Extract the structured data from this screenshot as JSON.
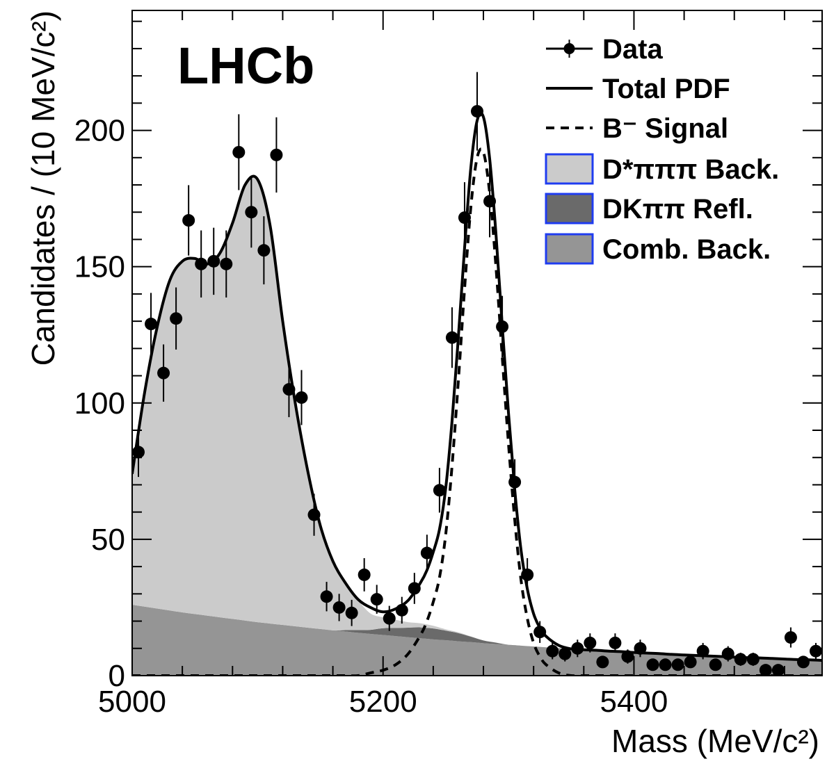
{
  "chart_data": {
    "type": "histogram-fit",
    "annotation": "LHCb",
    "xlabel": "Mass (MeV/c²)",
    "ylabel": "Candidates / (10 MeV/c²)",
    "xlim": [
      5000,
      5550
    ],
    "ylim": [
      0,
      244
    ],
    "xticks": [
      5000,
      5200,
      5400
    ],
    "yticks": [
      0,
      50,
      100,
      150,
      200
    ],
    "xminorticks": [
      5040,
      5080,
      5120,
      5160,
      5240,
      5280,
      5320,
      5360,
      5440,
      5480,
      5520
    ],
    "yminorticks": [
      10,
      20,
      30,
      40,
      60,
      70,
      80,
      90,
      110,
      120,
      130,
      140,
      160,
      170,
      180,
      190,
      210,
      220,
      230,
      240
    ],
    "series": [
      {
        "name": "Data",
        "type": "points",
        "color": "#000000",
        "x": [
          5005,
          5015,
          5025,
          5035,
          5045,
          5055,
          5065,
          5075,
          5085,
          5095,
          5105,
          5115,
          5125,
          5135,
          5145,
          5155,
          5165,
          5175,
          5185,
          5195,
          5205,
          5215,
          5225,
          5235,
          5245,
          5255,
          5265,
          5275,
          5285,
          5295,
          5305,
          5315,
          5325,
          5335,
          5345,
          5355,
          5365,
          5375,
          5385,
          5395,
          5405,
          5415,
          5425,
          5435,
          5445,
          5455,
          5465,
          5475,
          5485,
          5495,
          5505,
          5515,
          5525,
          5535,
          5545
        ],
        "values": [
          82,
          129,
          111,
          131,
          167,
          151,
          152,
          151,
          192,
          170,
          156,
          191,
          105,
          102,
          59,
          29,
          25,
          23,
          37,
          28,
          21,
          24,
          32,
          45,
          68,
          124,
          168,
          207,
          174,
          128,
          71,
          37,
          16,
          9,
          8,
          10,
          12,
          5,
          12,
          7,
          10,
          4,
          4,
          4,
          5,
          9,
          4,
          8,
          6,
          6,
          2,
          2,
          14,
          5,
          9
        ],
        "errors": [
          9.1,
          11.4,
          10.5,
          11.4,
          12.9,
          12.3,
          12.3,
          12.3,
          13.9,
          13.0,
          12.5,
          13.8,
          10.2,
          10.1,
          7.7,
          5.4,
          5.0,
          4.8,
          6.1,
          5.3,
          4.6,
          4.9,
          5.7,
          6.7,
          8.2,
          11.1,
          13.0,
          14.4,
          13.2,
          11.3,
          8.4,
          6.1,
          4.0,
          3.0,
          2.8,
          3.2,
          3.5,
          2.2,
          3.5,
          2.6,
          3.2,
          2.0,
          2.0,
          2.0,
          2.2,
          3.0,
          2.0,
          2.8,
          2.4,
          2.4,
          1.4,
          1.4,
          3.7,
          2.2,
          3.0
        ]
      },
      {
        "name": "Total PDF",
        "type": "line",
        "color": "#000000",
        "x": [
          5000,
          5010,
          5020,
          5030,
          5040,
          5050,
          5060,
          5070,
          5080,
          5090,
          5100,
          5110,
          5120,
          5130,
          5140,
          5150,
          5160,
          5170,
          5180,
          5190,
          5200,
          5210,
          5220,
          5230,
          5235,
          5240,
          5245,
          5250,
          5255,
          5260,
          5265,
          5270,
          5275,
          5280,
          5285,
          5290,
          5295,
          5300,
          5305,
          5310,
          5315,
          5320,
          5325,
          5330,
          5340,
          5350,
          5360,
          5370,
          5380,
          5390,
          5400,
          5410,
          5420,
          5430,
          5440,
          5450,
          5460,
          5470,
          5480,
          5490,
          5500,
          5510,
          5520,
          5530,
          5540,
          5550
        ],
        "values": [
          74,
          104,
          128,
          145,
          152,
          153,
          151,
          155,
          166,
          180,
          182,
          165,
          130,
          100,
          75,
          55,
          42,
          34,
          28,
          25,
          23.4,
          24.5,
          27.6,
          34.2,
          38.7,
          45.3,
          53.7,
          69,
          93.4,
          124,
          157,
          186.4,
          203.6,
          204.9,
          189.5,
          162,
          128.4,
          96.3,
          68.1,
          46,
          31.8,
          22.7,
          17.5,
          14.4,
          11.1,
          9.8,
          9.5,
          9.3,
          9.0,
          8.8,
          8.5,
          8.3,
          8.1,
          7.8,
          7.6,
          7.4,
          7.2,
          7.0,
          6.8,
          6.6,
          6.5,
          6.3,
          6.1,
          5.9,
          5.8,
          5.6
        ]
      },
      {
        "name": "B⁻ Signal",
        "type": "dashed",
        "color": "#000000",
        "x": [
          5000,
          5010,
          5020,
          5030,
          5040,
          5050,
          5060,
          5070,
          5080,
          5090,
          5100,
          5110,
          5120,
          5130,
          5140,
          5150,
          5160,
          5170,
          5180,
          5190,
          5200,
          5210,
          5220,
          5230,
          5235,
          5240,
          5245,
          5250,
          5255,
          5260,
          5265,
          5270,
          5275,
          5280,
          5285,
          5290,
          5295,
          5300,
          5305,
          5310,
          5315,
          5320,
          5325,
          5330,
          5340,
          5350,
          5360,
          5370,
          5380,
          5390,
          5400,
          5410,
          5420,
          5430,
          5440,
          5450,
          5460,
          5470,
          5480,
          5490,
          5500,
          5510,
          5520,
          5530,
          5540,
          5550
        ],
        "values": [
          0,
          0,
          0,
          0,
          0,
          0,
          0,
          0,
          0,
          0,
          0,
          0,
          0,
          0,
          0,
          0,
          0,
          0,
          0,
          1,
          2,
          4,
          8,
          15,
          20,
          27,
          36,
          52,
          77,
          108,
          142,
          172,
          190,
          192,
          177,
          150,
          117,
          85,
          57,
          35,
          21,
          12,
          7,
          4,
          1,
          0,
          0,
          0,
          0,
          0,
          0,
          0,
          0,
          0,
          0,
          0,
          0,
          0,
          0,
          0,
          0,
          0,
          0,
          0,
          0,
          0
        ]
      },
      {
        "name": "D*πππ Back.",
        "type": "area",
        "color": "#cbcbcb",
        "edgecolor": "#1f3cf0",
        "x": [
          5000,
          5010,
          5020,
          5030,
          5040,
          5050,
          5060,
          5070,
          5080,
          5090,
          5100,
          5110,
          5120,
          5130,
          5140,
          5150,
          5160,
          5170,
          5180,
          5190,
          5200,
          5210,
          5220,
          5230,
          5240,
          5250,
          5260,
          5270,
          5280,
          5290,
          5300,
          5310,
          5320,
          5330,
          5340,
          5350,
          5360,
          5370,
          5380,
          5390,
          5400,
          5410,
          5420,
          5430,
          5440,
          5450,
          5460,
          5470,
          5480,
          5490,
          5500,
          5510,
          5520,
          5530,
          5540,
          5550
        ],
        "values": [
          48,
          79,
          103,
          121,
          129,
          130,
          129,
          134,
          145,
          160,
          162,
          146,
          111,
          82,
          57,
          38,
          25,
          17,
          11,
          6,
          4,
          3,
          2,
          1.5,
          1,
          0.5,
          0.3,
          0.1,
          0,
          0,
          0,
          0,
          0,
          0,
          0,
          0,
          0,
          0,
          0,
          0,
          0,
          0,
          0,
          0,
          0,
          0,
          0,
          0,
          0,
          0,
          0,
          0,
          0,
          0,
          0,
          0
        ]
      },
      {
        "name": "DKππ Refl.",
        "type": "area",
        "color": "#6a6a6a",
        "edgecolor": "#1f3cf0",
        "x": [
          5000,
          5010,
          5020,
          5030,
          5040,
          5050,
          5060,
          5070,
          5080,
          5090,
          5100,
          5110,
          5120,
          5130,
          5140,
          5150,
          5160,
          5170,
          5180,
          5190,
          5200,
          5210,
          5220,
          5230,
          5240,
          5250,
          5260,
          5270,
          5280,
          5290,
          5300,
          5310,
          5320,
          5330,
          5340,
          5350,
          5360,
          5370,
          5380,
          5390,
          5400,
          5410,
          5420,
          5430,
          5440,
          5450,
          5460,
          5470,
          5480,
          5490,
          5500,
          5510,
          5520,
          5530,
          5540,
          5550
        ],
        "values": [
          0,
          0,
          0,
          0,
          0,
          0,
          0,
          0,
          0,
          0,
          0,
          0,
          0,
          0,
          0,
          0,
          0,
          0.5,
          1,
          1.5,
          2.5,
          3,
          3.5,
          4,
          4,
          3.5,
          3,
          2,
          1,
          0.5,
          0,
          0,
          0,
          0,
          0,
          0,
          0,
          0,
          0,
          0,
          0,
          0,
          0,
          0,
          0,
          0,
          0,
          0,
          0,
          0,
          0,
          0,
          0,
          0,
          0,
          0
        ]
      },
      {
        "name": "Comb. Back.",
        "type": "area",
        "color": "#959595",
        "edgecolor": "#1f3cf0",
        "x": [
          5000,
          5010,
          5020,
          5030,
          5040,
          5050,
          5060,
          5070,
          5080,
          5090,
          5100,
          5110,
          5120,
          5130,
          5140,
          5150,
          5160,
          5170,
          5180,
          5190,
          5200,
          5210,
          5220,
          5230,
          5240,
          5250,
          5260,
          5270,
          5280,
          5290,
          5300,
          5310,
          5320,
          5330,
          5340,
          5350,
          5360,
          5370,
          5380,
          5390,
          5400,
          5410,
          5420,
          5430,
          5440,
          5450,
          5460,
          5470,
          5480,
          5490,
          5500,
          5510,
          5520,
          5530,
          5540,
          5550
        ],
        "values": [
          26,
          25.3,
          24.6,
          23.9,
          23.2,
          22.6,
          22.0,
          21.4,
          20.8,
          20.2,
          19.6,
          19.1,
          18.6,
          18.1,
          17.6,
          17.1,
          16.6,
          16.2,
          15.7,
          15.3,
          14.9,
          14.5,
          14.1,
          13.7,
          13.3,
          13.0,
          12.6,
          12.3,
          11.9,
          11.6,
          11.3,
          11.0,
          10.7,
          10.4,
          10.1,
          9.8,
          9.5,
          9.3,
          9.0,
          8.8,
          8.5,
          8.3,
          8.1,
          7.8,
          7.6,
          7.4,
          7.2,
          7.0,
          6.8,
          6.6,
          6.5,
          6.3,
          6.1,
          5.9,
          5.8,
          5.6
        ]
      }
    ]
  }
}
